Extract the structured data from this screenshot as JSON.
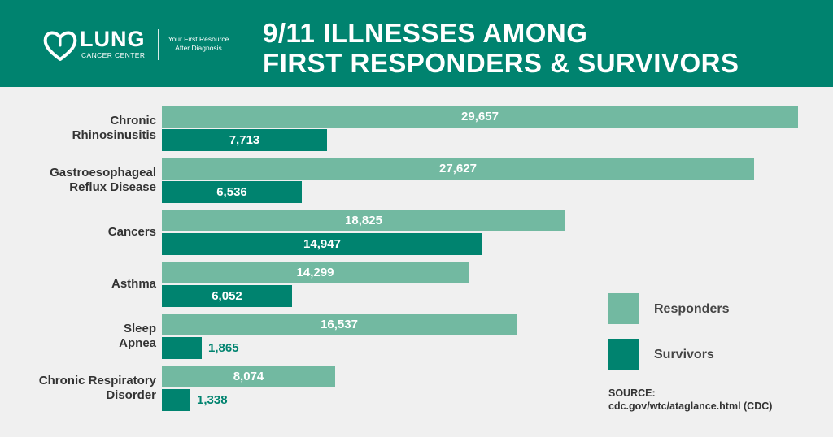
{
  "logo": {
    "name": "LUNG",
    "subtitle": "CANCER CENTER",
    "tagline_line1": "Your First Resource",
    "tagline_line2": "After Diagnosis"
  },
  "title": {
    "line1": "9/11 ILLNESSES AMONG",
    "line2": "FIRST RESPONDERS & SURVIVORS"
  },
  "colors": {
    "header": "#00836f",
    "responders": "#72b9a1",
    "survivors": "#00836f",
    "background": "#f0f0f0"
  },
  "legend": {
    "responders": "Responders",
    "survivors": "Survivors"
  },
  "source": {
    "label": "SOURCE:",
    "url": "cdc.gov/wtc/ataglance.html (CDC)"
  },
  "chart_data": {
    "type": "bar",
    "orientation": "horizontal",
    "title": "9/11 ILLNESSES AMONG FIRST RESPONDERS & SURVIVORS",
    "categories": [
      [
        "Chronic",
        "Rhinosinusitis"
      ],
      [
        "Gastroesophageal",
        "Reflux Disease"
      ],
      [
        "Cancers"
      ],
      [
        "Asthma"
      ],
      [
        "Sleep",
        "Apnea"
      ],
      [
        "Chronic Respiratory",
        "Disorder"
      ]
    ],
    "series": [
      {
        "name": "Responders",
        "values": [
          29657,
          27627,
          18825,
          14299,
          16537,
          8074
        ],
        "labels": [
          "29,657",
          "27,627",
          "18,825",
          "14,299",
          "16,537",
          "8,074"
        ]
      },
      {
        "name": "Survivors",
        "values": [
          7713,
          6536,
          14947,
          6052,
          1865,
          1338
        ],
        "labels": [
          "7,713",
          "6,536",
          "14,947",
          "6,052",
          "1,865",
          "1,338"
        ]
      }
    ],
    "xlim": [
      0,
      29657
    ],
    "grid": false,
    "legend_position": "right"
  }
}
